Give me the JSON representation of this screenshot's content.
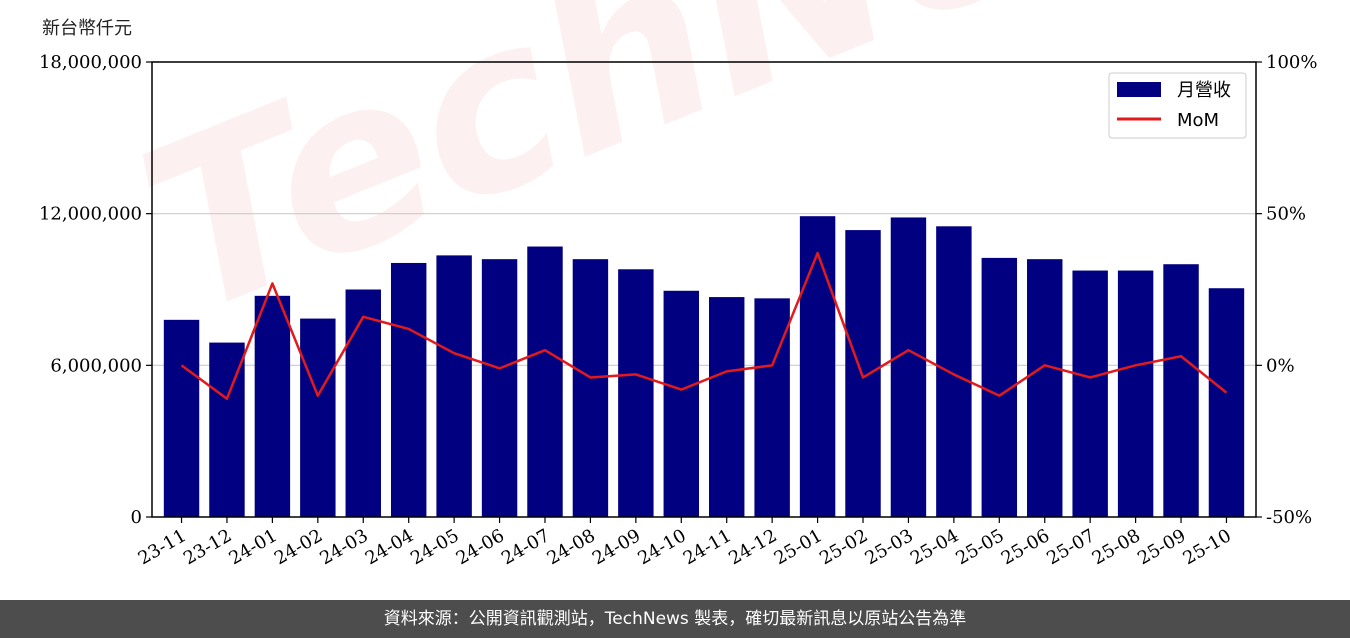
{
  "unit_label": "新台幣仟元",
  "footer_text": "資料來源：公開資訊觀測站，TechNews 製表，確切最新訊息以原站公告為準",
  "watermark_text": "TechNews",
  "colors": {
    "bar": "#000080",
    "line": "#e31a1c",
    "grid": "#cccccc",
    "footer_bg": "#4d4d4d"
  },
  "chart_data": {
    "type": "bar",
    "categories": [
      "23-11",
      "23-12",
      "24-01",
      "24-02",
      "24-03",
      "24-04",
      "24-05",
      "24-06",
      "24-07",
      "24-08",
      "24-09",
      "24-10",
      "24-11",
      "24-12",
      "25-01",
      "25-02",
      "25-03",
      "25-04",
      "25-05",
      "25-06",
      "25-07",
      "25-08",
      "25-09",
      "25-10"
    ],
    "series": [
      {
        "name": "月營收",
        "type": "bar",
        "axis": "left",
        "values": [
          7800000,
          6900000,
          8750000,
          7850000,
          9000000,
          10050000,
          10350000,
          10200000,
          10700000,
          10200000,
          9800000,
          8950000,
          8700000,
          8650000,
          11900000,
          11350000,
          11850000,
          11500000,
          10250000,
          10200000,
          9750000,
          9750000,
          10000000,
          9050000
        ]
      },
      {
        "name": "MoM",
        "type": "line",
        "axis": "right",
        "values": [
          0,
          -11,
          27,
          -10,
          16,
          12,
          4,
          -1,
          5,
          -4,
          -3,
          -8,
          -2,
          0,
          37,
          -4,
          5,
          -3,
          -10,
          0,
          -4,
          0,
          3,
          -9
        ]
      }
    ],
    "y_left": {
      "ticks": [
        "0",
        "6,000,000",
        "12,000,000",
        "18,000,000"
      ],
      "tick_values": [
        0,
        6000000,
        12000000,
        18000000
      ],
      "range": [
        0,
        18000000
      ]
    },
    "y_right": {
      "ticks": [
        "-50%",
        "0%",
        "50%",
        "100%"
      ],
      "tick_values": [
        -50,
        0,
        50,
        100
      ],
      "range": [
        -50,
        100
      ]
    },
    "grid": "horizontal",
    "legend_position": "top-right"
  }
}
